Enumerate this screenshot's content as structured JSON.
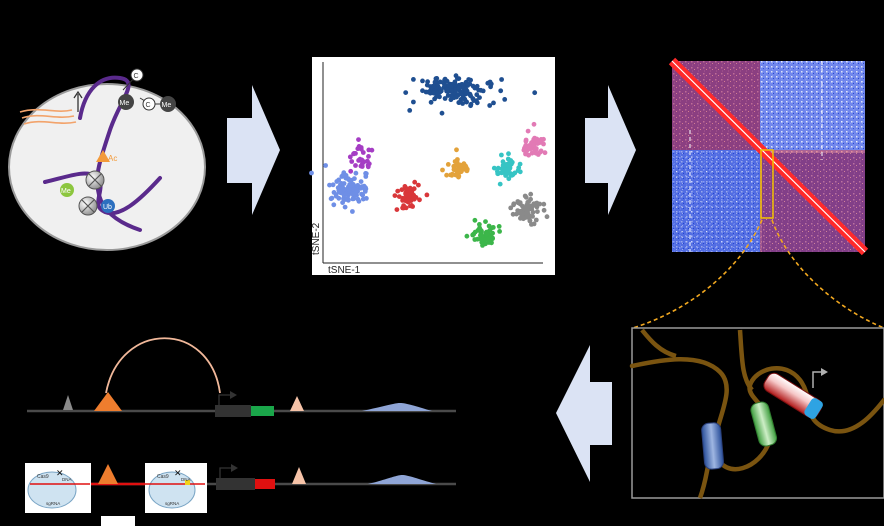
{
  "nucleus": {
    "mark_me_1": "Me",
    "mark_me_2": "Me",
    "mark_ac": "Ac",
    "mark_me_green": "Me",
    "mark_ub": "Ub",
    "mark_c_1": "C",
    "mark_c_2": "C"
  },
  "tsne": {
    "xlabel": "tSNE-1",
    "ylabel": "tSNE-2",
    "clusters": [
      {
        "color": "#1f4f91"
      },
      {
        "color": "#6f8fe6"
      },
      {
        "color": "#a53dc4"
      },
      {
        "color": "#d9373a"
      },
      {
        "color": "#e3a23a"
      },
      {
        "color": "#36c4c4"
      },
      {
        "color": "#e27ab5"
      },
      {
        "color": "#3cb64a"
      },
      {
        "color": "#8a8a8a"
      }
    ]
  },
  "crispr": {
    "cas9_label": "Cas9",
    "cas9_label_2": "Cas9",
    "dna_label": "DNA",
    "dna_label_2": "DNA",
    "sgrna_label": "sgRNA",
    "sgrna_label_2": "sgRNA",
    "cut_mark": "✕",
    "cut_mark_2": "✕"
  },
  "colors": {
    "arrow": "#dbe3f4",
    "chromatin": "#5a2a8c",
    "loop": "#f1b89a",
    "enhancer": "#ee7d2e",
    "gene_green": "#1aa64a",
    "gene_red": "#e01010",
    "peak": "#8fa5d6"
  }
}
